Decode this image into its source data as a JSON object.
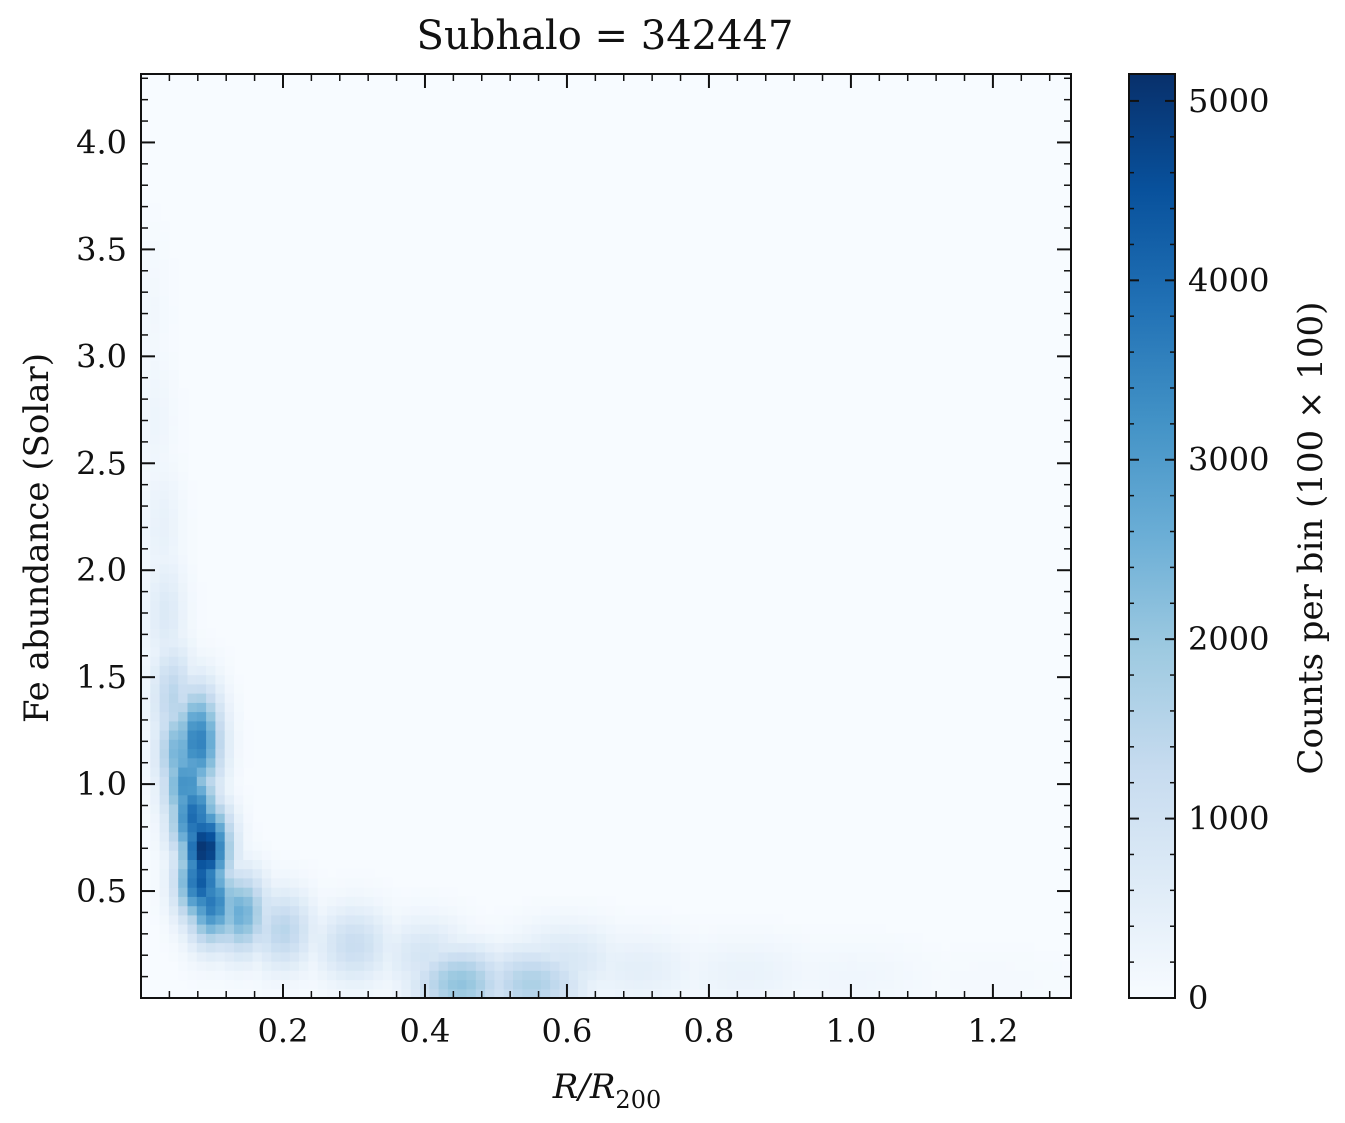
{
  "chart_data": {
    "type": "heatmap",
    "title": "Subhalo = 342447",
    "xlabel": "R/R",
    "xlabel_sub": "200",
    "ylabel": "Fe abundance (Solar)",
    "xlim": [
      0.0,
      1.31
    ],
    "ylim": [
      0.0,
      4.32
    ],
    "x_ticks": [
      0.2,
      0.4,
      0.6,
      0.8,
      1.0,
      1.2
    ],
    "x_tick_labels": [
      "0.2",
      "0.4",
      "0.6",
      "0.8",
      "1.0",
      "1.2"
    ],
    "y_ticks": [
      0.5,
      1.0,
      1.5,
      2.0,
      2.5,
      3.0,
      3.5,
      4.0
    ],
    "y_tick_labels": [
      "0.5",
      "1.0",
      "1.5",
      "2.0",
      "2.5",
      "3.0",
      "3.5",
      "4.0"
    ],
    "colorbar": {
      "label": "Counts per bin (100 × 100)",
      "colormap": "Blues",
      "range": [
        0,
        5150
      ],
      "ticks": [
        0,
        1000,
        2000,
        3000,
        4000,
        5000
      ],
      "tick_labels": [
        "0",
        "1000",
        "2000",
        "3000",
        "4000",
        "5000"
      ],
      "colors": [
        "#f7fbff",
        "#deebf7",
        "#c6dbef",
        "#9ecae1",
        "#6baed6",
        "#4292c6",
        "#2171b5",
        "#08519c",
        "#08306b"
      ]
    },
    "grid": false,
    "density_regions": [
      {
        "x": 0.015,
        "y": 3.2,
        "count": 150
      },
      {
        "x": 0.02,
        "y": 2.7,
        "count": 250
      },
      {
        "x": 0.03,
        "y": 2.2,
        "count": 400
      },
      {
        "x": 0.035,
        "y": 1.8,
        "count": 700
      },
      {
        "x": 0.045,
        "y": 1.4,
        "count": 1500
      },
      {
        "x": 0.055,
        "y": 1.15,
        "count": 2600
      },
      {
        "x": 0.065,
        "y": 1.0,
        "count": 3300
      },
      {
        "x": 0.08,
        "y": 1.2,
        "count": 3600
      },
      {
        "x": 0.075,
        "y": 0.85,
        "count": 4000
      },
      {
        "x": 0.09,
        "y": 0.7,
        "count": 5150
      },
      {
        "x": 0.085,
        "y": 0.55,
        "count": 4300
      },
      {
        "x": 0.1,
        "y": 0.45,
        "count": 3700
      },
      {
        "x": 0.14,
        "y": 0.4,
        "count": 2600
      },
      {
        "x": 0.2,
        "y": 0.32,
        "count": 1500
      },
      {
        "x": 0.3,
        "y": 0.25,
        "count": 1200
      },
      {
        "x": 0.4,
        "y": 0.2,
        "count": 900
      },
      {
        "x": 0.45,
        "y": 0.07,
        "count": 2100
      },
      {
        "x": 0.55,
        "y": 0.07,
        "count": 1700
      },
      {
        "x": 0.6,
        "y": 0.18,
        "count": 800
      },
      {
        "x": 0.7,
        "y": 0.14,
        "count": 500
      },
      {
        "x": 0.85,
        "y": 0.12,
        "count": 350
      },
      {
        "x": 1.0,
        "y": 0.1,
        "count": 200
      },
      {
        "x": 1.2,
        "y": 0.08,
        "count": 80
      }
    ]
  }
}
